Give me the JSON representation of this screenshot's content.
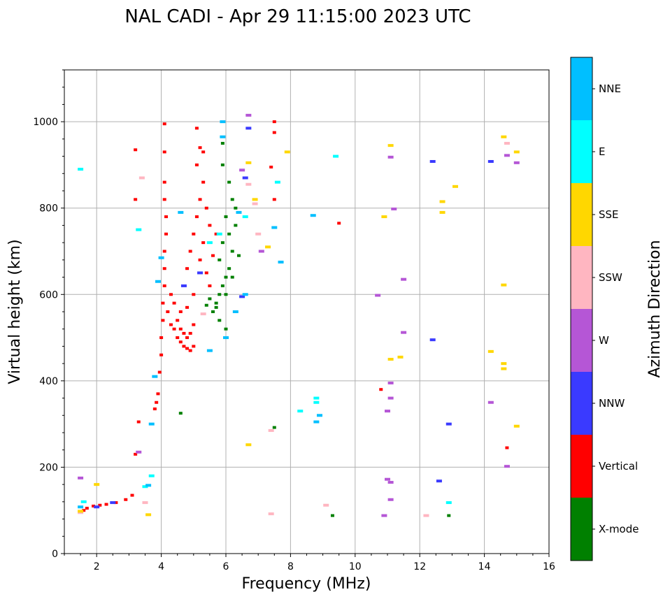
{
  "chart_data": {
    "type": "scatter",
    "title": "NAL CADI - Apr 29 11:15:00 2023 UTC",
    "xlabel": "Frequency (MHz)",
    "ylabel": "Virtual height (km)",
    "xlim": [
      1,
      16
    ],
    "ylim": [
      0,
      1120
    ],
    "xticks": [
      2,
      4,
      6,
      8,
      10,
      12,
      14,
      16
    ],
    "yticks": [
      0,
      200,
      400,
      600,
      800,
      1000
    ],
    "grid": true,
    "colorbar": {
      "label": "Azimuth Direction",
      "categories": [
        {
          "name": "X-mode",
          "color": "#008000"
        },
        {
          "name": "Vertical",
          "color": "#ff0000"
        },
        {
          "name": "NNW",
          "color": "#3a3aff"
        },
        {
          "name": "W",
          "color": "#b556d6"
        },
        {
          "name": "SSW",
          "color": "#ffb6c1"
        },
        {
          "name": "SSE",
          "color": "#ffd700"
        },
        {
          "name": "E",
          "color": "#00ffff"
        },
        {
          "name": "NNE",
          "color": "#00bfff"
        }
      ]
    },
    "series": [
      {
        "name": "Vertical",
        "color": "#ff0000",
        "points": [
          [
            1.6,
            100
          ],
          [
            1.7,
            105
          ],
          [
            1.9,
            110
          ],
          [
            2.1,
            112
          ],
          [
            2.3,
            114
          ],
          [
            2.6,
            118
          ],
          [
            2.9,
            125
          ],
          [
            3.1,
            135
          ],
          [
            3.2,
            230
          ],
          [
            3.3,
            305
          ],
          [
            3.8,
            335
          ],
          [
            3.85,
            350
          ],
          [
            3.9,
            370
          ],
          [
            3.95,
            420
          ],
          [
            4.0,
            460
          ],
          [
            4.0,
            500
          ],
          [
            4.05,
            540
          ],
          [
            4.05,
            580
          ],
          [
            4.1,
            620
          ],
          [
            4.1,
            660
          ],
          [
            4.1,
            700
          ],
          [
            4.15,
            740
          ],
          [
            4.15,
            780
          ],
          [
            4.1,
            820
          ],
          [
            4.1,
            860
          ],
          [
            4.1,
            930
          ],
          [
            4.1,
            995
          ],
          [
            3.2,
            935
          ],
          [
            3.2,
            820
          ],
          [
            4.2,
            560
          ],
          [
            4.3,
            530
          ],
          [
            4.4,
            520
          ],
          [
            4.5,
            500
          ],
          [
            4.6,
            490
          ],
          [
            4.7,
            480
          ],
          [
            4.8,
            475
          ],
          [
            4.9,
            470
          ],
          [
            5.0,
            480
          ],
          [
            4.5,
            540
          ],
          [
            4.6,
            520
          ],
          [
            4.7,
            510
          ],
          [
            4.8,
            500
          ],
          [
            4.9,
            510
          ],
          [
            5.0,
            530
          ],
          [
            4.3,
            600
          ],
          [
            4.4,
            580
          ],
          [
            4.6,
            560
          ],
          [
            4.8,
            570
          ],
          [
            5.0,
            600
          ],
          [
            4.8,
            660
          ],
          [
            4.9,
            700
          ],
          [
            5.0,
            740
          ],
          [
            5.1,
            780
          ],
          [
            5.2,
            820
          ],
          [
            5.3,
            860
          ],
          [
            5.1,
            900
          ],
          [
            5.2,
            940
          ],
          [
            5.1,
            985
          ],
          [
            5.3,
            930
          ],
          [
            5.4,
            800
          ],
          [
            5.5,
            760
          ],
          [
            5.3,
            720
          ],
          [
            5.2,
            680
          ],
          [
            5.4,
            650
          ],
          [
            5.5,
            620
          ],
          [
            5.6,
            690
          ],
          [
            5.7,
            740
          ],
          [
            7.5,
            1000
          ],
          [
            7.5,
            975
          ],
          [
            7.5,
            820
          ],
          [
            7.4,
            895
          ],
          [
            9.5,
            765
          ],
          [
            10.8,
            380
          ],
          [
            14.7,
            245
          ]
        ]
      },
      {
        "name": "X-mode",
        "color": "#008000",
        "points": [
          [
            5.6,
            560
          ],
          [
            5.7,
            580
          ],
          [
            5.8,
            600
          ],
          [
            5.9,
            620
          ],
          [
            6.0,
            640
          ],
          [
            6.1,
            660
          ],
          [
            6.2,
            700
          ],
          [
            6.1,
            740
          ],
          [
            6.0,
            780
          ],
          [
            6.2,
            820
          ],
          [
            6.1,
            860
          ],
          [
            5.9,
            900
          ],
          [
            5.9,
            950
          ],
          [
            5.7,
            570
          ],
          [
            5.8,
            540
          ],
          [
            6.0,
            520
          ],
          [
            5.8,
            680
          ],
          [
            5.9,
            720
          ],
          [
            6.0,
            600
          ],
          [
            6.2,
            640
          ],
          [
            5.5,
            590
          ],
          [
            5.4,
            575
          ],
          [
            6.3,
            760
          ],
          [
            6.3,
            800
          ],
          [
            6.4,
            690
          ],
          [
            4.6,
            325
          ],
          [
            7.5,
            292
          ],
          [
            9.3,
            88
          ],
          [
            12.9,
            88
          ]
        ]
      },
      {
        "name": "NNW",
        "color": "#3a3aff",
        "points": [
          [
            2.0,
            108
          ],
          [
            2.5,
            118
          ],
          [
            4.7,
            620
          ],
          [
            5.2,
            650
          ],
          [
            6.6,
            870
          ],
          [
            6.7,
            985
          ],
          [
            12.4,
            495
          ],
          [
            12.4,
            908
          ],
          [
            12.6,
            168
          ],
          [
            12.9,
            300
          ],
          [
            14.2,
            908
          ],
          [
            6.5,
            595
          ]
        ]
      },
      {
        "name": "W",
        "color": "#b556d6",
        "points": [
          [
            1.5,
            175
          ],
          [
            3.3,
            235
          ],
          [
            6.7,
            1015
          ],
          [
            6.5,
            888
          ],
          [
            7.1,
            700
          ],
          [
            10.7,
            598
          ],
          [
            11.0,
            330
          ],
          [
            11.1,
            395
          ],
          [
            11.1,
            360
          ],
          [
            11.2,
            798
          ],
          [
            11.5,
            635
          ],
          [
            11.5,
            512
          ],
          [
            11.0,
            172
          ],
          [
            11.1,
            165
          ],
          [
            11.1,
            125
          ],
          [
            10.9,
            88
          ],
          [
            11.1,
            918
          ],
          [
            14.2,
            350
          ],
          [
            14.7,
            922
          ],
          [
            15.0,
            905
          ],
          [
            14.7,
            202
          ]
        ]
      },
      {
        "name": "SSW",
        "color": "#ffb6c1",
        "points": [
          [
            1.5,
            95
          ],
          [
            3.4,
            870
          ],
          [
            3.5,
            118
          ],
          [
            6.7,
            855
          ],
          [
            6.9,
            810
          ],
          [
            7.0,
            740
          ],
          [
            7.4,
            285
          ],
          [
            7.4,
            92
          ],
          [
            9.1,
            112
          ],
          [
            12.2,
            88
          ],
          [
            14.7,
            950
          ],
          [
            5.3,
            555
          ]
        ]
      },
      {
        "name": "SSE",
        "color": "#ffd700",
        "points": [
          [
            1.5,
            98
          ],
          [
            2.0,
            160
          ],
          [
            3.6,
            90
          ],
          [
            6.7,
            252
          ],
          [
            6.7,
            905
          ],
          [
            6.9,
            820
          ],
          [
            7.3,
            710
          ],
          [
            7.9,
            930
          ],
          [
            10.9,
            780
          ],
          [
            11.1,
            450
          ],
          [
            11.4,
            455
          ],
          [
            11.1,
            945
          ],
          [
            12.7,
            815
          ],
          [
            12.7,
            790
          ],
          [
            13.1,
            850
          ],
          [
            14.2,
            468
          ],
          [
            14.6,
            965
          ],
          [
            14.6,
            622
          ],
          [
            14.6,
            440
          ],
          [
            14.6,
            428
          ],
          [
            15.0,
            930
          ],
          [
            15.0,
            295
          ]
        ]
      },
      {
        "name": "E",
        "color": "#00ffff",
        "points": [
          [
            1.5,
            890
          ],
          [
            1.6,
            120
          ],
          [
            3.5,
            155
          ],
          [
            3.7,
            180
          ],
          [
            3.3,
            750
          ],
          [
            5.5,
            720
          ],
          [
            5.8,
            740
          ],
          [
            6.6,
            780
          ],
          [
            8.8,
            360
          ],
          [
            8.8,
            350
          ],
          [
            8.3,
            330
          ],
          [
            9.4,
            920
          ],
          [
            12.9,
            118
          ],
          [
            7.6,
            860
          ]
        ]
      },
      {
        "name": "NNE",
        "color": "#00bfff",
        "points": [
          [
            1.5,
            108
          ],
          [
            3.6,
            158
          ],
          [
            3.7,
            300
          ],
          [
            3.8,
            410
          ],
          [
            3.9,
            630
          ],
          [
            4.0,
            685
          ],
          [
            4.6,
            790
          ],
          [
            5.5,
            470
          ],
          [
            5.9,
            1000
          ],
          [
            5.9,
            965
          ],
          [
            6.0,
            500
          ],
          [
            6.3,
            560
          ],
          [
            6.4,
            790
          ],
          [
            6.6,
            600
          ],
          [
            7.7,
            675
          ],
          [
            8.7,
            783
          ],
          [
            8.8,
            305
          ],
          [
            8.9,
            320
          ],
          [
            7.5,
            755
          ]
        ]
      }
    ]
  }
}
